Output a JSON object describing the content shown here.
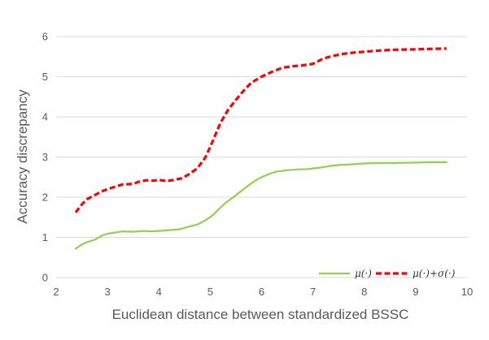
{
  "chart_data": {
    "type": "line",
    "title": "",
    "xlabel": "Euclidean distance between standardized BSSC",
    "ylabel": "Accuracy discrepancy",
    "xlim": [
      2,
      10
    ],
    "ylim": [
      0,
      6
    ],
    "x_ticks": [
      "2",
      "3",
      "4",
      "5",
      "6",
      "7",
      "8",
      "9",
      "10"
    ],
    "y_ticks": [
      "0",
      "1",
      "2",
      "3",
      "4",
      "5",
      "6"
    ],
    "grid": "horizontal",
    "legend_position": "bottom-right",
    "series": [
      {
        "name": "μ(·)",
        "color": "#92d050",
        "style": "solid",
        "points": [
          [
            2.38,
            0.72
          ],
          [
            2.5,
            0.82
          ],
          [
            2.6,
            0.88
          ],
          [
            2.75,
            0.94
          ],
          [
            2.9,
            1.05
          ],
          [
            3.0,
            1.09
          ],
          [
            3.15,
            1.12
          ],
          [
            3.3,
            1.15
          ],
          [
            3.5,
            1.14
          ],
          [
            3.7,
            1.16
          ],
          [
            3.85,
            1.15
          ],
          [
            4.0,
            1.16
          ],
          [
            4.2,
            1.18
          ],
          [
            4.4,
            1.2
          ],
          [
            4.6,
            1.27
          ],
          [
            4.75,
            1.32
          ],
          [
            4.9,
            1.42
          ],
          [
            5.05,
            1.55
          ],
          [
            5.15,
            1.68
          ],
          [
            5.3,
            1.86
          ],
          [
            5.45,
            2.0
          ],
          [
            5.6,
            2.15
          ],
          [
            5.75,
            2.3
          ],
          [
            5.9,
            2.43
          ],
          [
            6.0,
            2.5
          ],
          [
            6.15,
            2.58
          ],
          [
            6.3,
            2.64
          ],
          [
            6.5,
            2.67
          ],
          [
            6.7,
            2.69
          ],
          [
            6.9,
            2.7
          ],
          [
            7.1,
            2.73
          ],
          [
            7.3,
            2.77
          ],
          [
            7.5,
            2.8
          ],
          [
            7.8,
            2.82
          ],
          [
            8.0,
            2.84
          ],
          [
            8.3,
            2.85
          ],
          [
            8.6,
            2.85
          ],
          [
            9.0,
            2.86
          ],
          [
            9.3,
            2.87
          ],
          [
            9.6,
            2.87
          ]
        ]
      },
      {
        "name": "μ(·)+σ(·)",
        "color": "#ff0000",
        "style": "dashed",
        "points": [
          [
            2.38,
            1.62
          ],
          [
            2.5,
            1.82
          ],
          [
            2.6,
            1.95
          ],
          [
            2.75,
            2.05
          ],
          [
            2.9,
            2.15
          ],
          [
            3.0,
            2.2
          ],
          [
            3.15,
            2.26
          ],
          [
            3.3,
            2.32
          ],
          [
            3.5,
            2.33
          ],
          [
            3.6,
            2.38
          ],
          [
            3.75,
            2.42
          ],
          [
            3.9,
            2.41
          ],
          [
            4.0,
            2.43
          ],
          [
            4.15,
            2.4
          ],
          [
            4.3,
            2.43
          ],
          [
            4.45,
            2.47
          ],
          [
            4.6,
            2.58
          ],
          [
            4.75,
            2.72
          ],
          [
            4.9,
            2.98
          ],
          [
            5.0,
            3.25
          ],
          [
            5.1,
            3.55
          ],
          [
            5.2,
            3.85
          ],
          [
            5.35,
            4.18
          ],
          [
            5.5,
            4.42
          ],
          [
            5.65,
            4.65
          ],
          [
            5.8,
            4.85
          ],
          [
            6.0,
            5.0
          ],
          [
            6.2,
            5.12
          ],
          [
            6.4,
            5.22
          ],
          [
            6.6,
            5.26
          ],
          [
            6.8,
            5.28
          ],
          [
            7.0,
            5.32
          ],
          [
            7.2,
            5.45
          ],
          [
            7.4,
            5.52
          ],
          [
            7.6,
            5.57
          ],
          [
            7.8,
            5.6
          ],
          [
            8.0,
            5.62
          ],
          [
            8.3,
            5.65
          ],
          [
            8.6,
            5.67
          ],
          [
            9.0,
            5.68
          ],
          [
            9.3,
            5.69
          ],
          [
            9.6,
            5.7
          ]
        ]
      }
    ]
  }
}
